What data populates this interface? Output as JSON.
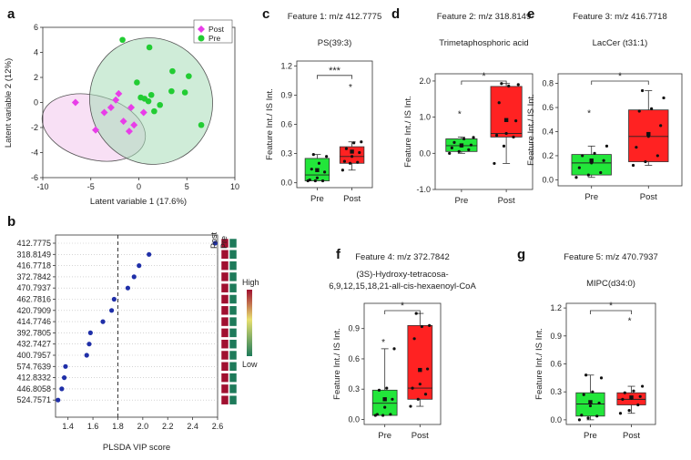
{
  "chart_data": [
    {
      "panel": "a",
      "type": "scatter",
      "xlabel": "Latent variable 1 (17.6%)",
      "ylabel": "Latent variable 2 (12%)",
      "xlim": [
        -10,
        10
      ],
      "ylim": [
        -6,
        6
      ],
      "xticks": [
        -10,
        -5,
        0,
        5,
        10
      ],
      "yticks": [
        -6,
        -4,
        -2,
        0,
        2,
        4,
        6
      ],
      "legend": [
        "Post",
        "Pre"
      ],
      "series": [
        {
          "name": "Post",
          "color": "#e83ee8",
          "marker": "diamond",
          "points": [
            [
              -6.6,
              0.0
            ],
            [
              -4.5,
              -2.2
            ],
            [
              -3.6,
              -0.8
            ],
            [
              -2.9,
              -0.4
            ],
            [
              -2.4,
              0.2
            ],
            [
              -2.1,
              0.7
            ],
            [
              -1.6,
              -1.5
            ],
            [
              -0.5,
              -1.8
            ],
            [
              -0.8,
              -0.4
            ],
            [
              -1.0,
              -2.3
            ],
            [
              0.5,
              -0.8
            ]
          ]
        },
        {
          "name": "Pre",
          "color": "#22cc33",
          "marker": "circle",
          "points": [
            [
              0.2,
              0.4
            ],
            [
              0.6,
              0.3
            ],
            [
              1.0,
              0.1
            ],
            [
              1.3,
              0.6
            ],
            [
              1.6,
              -0.7
            ],
            [
              2.2,
              -0.2
            ],
            [
              3.4,
              0.9
            ],
            [
              4.8,
              0.8
            ],
            [
              5.2,
              2.1
            ],
            [
              6.5,
              -1.8
            ],
            [
              3.5,
              2.5
            ],
            [
              1.1,
              4.4
            ],
            [
              -1.7,
              5.0
            ],
            [
              -0.2,
              1.6
            ]
          ]
        }
      ]
    },
    {
      "panel": "b",
      "type": "dot",
      "xlabel": "PLSDA VIP score",
      "xlim": [
        1.3,
        2.6
      ],
      "xticks": [
        1.4,
        1.6,
        1.8,
        2.0,
        2.2,
        2.4,
        2.6
      ],
      "threshold": 1.8,
      "features": [
        "412.7775",
        "318.8149",
        "416.7718",
        "372.7842",
        "470.7937",
        "462.7816",
        "420.7909",
        "414.7746",
        "392.7805",
        "432.7427",
        "400.7957",
        "574.7639",
        "412.8332",
        "446.8058",
        "524.7571"
      ],
      "values": [
        2.58,
        2.05,
        1.97,
        1.93,
        1.88,
        1.77,
        1.75,
        1.68,
        1.58,
        1.57,
        1.55,
        1.38,
        1.37,
        1.35,
        1.32
      ],
      "heat_columns": [
        "Post",
        "Pre"
      ],
      "heat_post": "High",
      "heat_pre": "Low",
      "colorbar": {
        "high": "High",
        "low": "Low"
      }
    },
    {
      "panel": "c",
      "type": "box",
      "header": "Feature 1: m/z 412.7775",
      "subtitle": "PS(39:3)",
      "ylabel": "Feature Int./ IS Int.",
      "ylim": [
        -0.05,
        1.25
      ],
      "yticks": [
        0.0,
        0.3,
        0.6,
        0.9,
        1.2
      ],
      "categories": [
        "Pre",
        "Post"
      ],
      "sig": "***",
      "boxes": [
        {
          "q1": 0.02,
          "median": 0.08,
          "q3": 0.25,
          "mean": 0.13,
          "wlo": 0.02,
          "whi": 0.29,
          "pts": [
            0.02,
            0.02,
            0.02,
            0.03,
            0.05,
            0.11,
            0.14,
            0.2,
            0.27,
            0.29
          ]
        },
        {
          "q1": 0.2,
          "median": 0.27,
          "q3": 0.37,
          "mean": 0.32,
          "wlo": 0.13,
          "whi": 0.42,
          "pts": [
            0.13,
            0.2,
            0.21,
            0.22,
            0.27,
            0.31,
            0.35,
            0.41,
            0.42,
            0.99
          ]
        }
      ]
    },
    {
      "panel": "d",
      "type": "box",
      "header": "Feature 2: m/z 318.8149",
      "subtitle": "Trimetaphosphoric acid",
      "ylabel": "Feature Int./ IS Int.",
      "ylim": [
        -1.0,
        2.2
      ],
      "yticks": [
        -1.0,
        0.0,
        1.0,
        2.0
      ],
      "categories": [
        "Pre",
        "Post"
      ],
      "sig": "*",
      "boxes": [
        {
          "q1": 0.05,
          "median": 0.21,
          "q3": 0.4,
          "mean": 0.22,
          "wlo": 0.0,
          "whi": 0.45,
          "pts": [
            0.0,
            0.05,
            0.1,
            0.15,
            0.2,
            0.23,
            0.3,
            0.4,
            0.44,
            1.1
          ]
        },
        {
          "q1": 0.45,
          "median": 0.55,
          "q3": 1.85,
          "mean": 0.92,
          "wlo": -0.28,
          "whi": 1.93,
          "pts": [
            -0.28,
            0.2,
            0.45,
            0.5,
            0.55,
            0.9,
            1.4,
            1.86,
            1.9,
            1.93
          ]
        }
      ]
    },
    {
      "panel": "e",
      "type": "box",
      "header": "Feature 3: m/z 416.7718",
      "subtitle": "LacCer (t31:1)",
      "ylabel": "Feature Int./ IS Int.",
      "ylim": [
        -0.05,
        0.88
      ],
      "yticks": [
        0.0,
        0.2,
        0.4,
        0.6,
        0.8
      ],
      "categories": [
        "Pre",
        "Post"
      ],
      "sig": "*",
      "boxes": [
        {
          "q1": 0.04,
          "median": 0.14,
          "q3": 0.21,
          "mean": 0.16,
          "wlo": 0.02,
          "whi": 0.28,
          "pts": [
            0.02,
            0.04,
            0.06,
            0.1,
            0.14,
            0.16,
            0.2,
            0.22,
            0.28,
            0.56
          ]
        },
        {
          "q1": 0.15,
          "median": 0.36,
          "q3": 0.58,
          "mean": 0.38,
          "wlo": 0.12,
          "whi": 0.74,
          "pts": [
            0.12,
            0.15,
            0.2,
            0.27,
            0.36,
            0.45,
            0.57,
            0.59,
            0.68,
            0.74
          ]
        }
      ]
    },
    {
      "panel": "f",
      "type": "box",
      "header": "Feature 4: m/z 372.7842",
      "subtitle": "(3S)-Hydroxy-tetracosa-",
      "subtitle2": "6,9,12,15,18,21-all-cis-hexaenoyl-CoA",
      "ylabel": "Feature Int./ IS Int.",
      "ylim": [
        -0.05,
        1.15
      ],
      "yticks": [
        0.0,
        0.3,
        0.6,
        0.9
      ],
      "categories": [
        "Pre",
        "Post"
      ],
      "sig": "*",
      "boxes": [
        {
          "q1": 0.04,
          "median": 0.16,
          "q3": 0.29,
          "mean": 0.2,
          "wlo": 0.04,
          "whi": 0.7,
          "pts": [
            0.04,
            0.04,
            0.05,
            0.05,
            0.12,
            0.2,
            0.29,
            0.31,
            0.7,
            0.77
          ]
        },
        {
          "q1": 0.2,
          "median": 0.31,
          "q3": 0.93,
          "mean": 0.49,
          "wlo": 0.13,
          "whi": 1.05,
          "pts": [
            0.13,
            0.2,
            0.25,
            0.31,
            0.35,
            0.5,
            0.8,
            0.92,
            0.93,
            1.05
          ]
        }
      ]
    },
    {
      "panel": "g",
      "type": "box",
      "header": "Feature 5: m/z 470.7937",
      "subtitle": "MIPC(d34:0)",
      "ylabel": "Feature Int./ IS Int.",
      "ylim": [
        -0.05,
        1.25
      ],
      "yticks": [
        0.0,
        0.3,
        0.6,
        0.9,
        1.2
      ],
      "categories": [
        "Pre",
        "Post"
      ],
      "sig": "*",
      "boxes": [
        {
          "q1": 0.04,
          "median": 0.17,
          "q3": 0.29,
          "mean": 0.19,
          "wlo": 0.0,
          "whi": 0.48,
          "pts": [
            0.0,
            0.02,
            0.04,
            0.05,
            0.15,
            0.18,
            0.27,
            0.3,
            0.45,
            0.48
          ]
        },
        {
          "q1": 0.16,
          "median": 0.22,
          "q3": 0.29,
          "mean": 0.24,
          "wlo": 0.07,
          "whi": 0.36,
          "pts": [
            0.07,
            0.1,
            0.16,
            0.22,
            0.23,
            0.25,
            0.29,
            0.31,
            0.36,
            1.07
          ]
        }
      ]
    }
  ]
}
